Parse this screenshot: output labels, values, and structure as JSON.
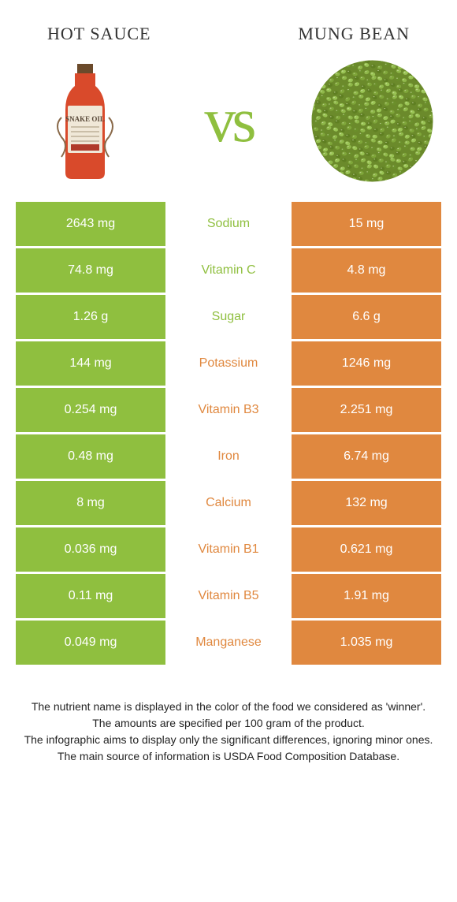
{
  "header": {
    "left_title": "Hot sauce",
    "right_title": "Mung bean"
  },
  "vs_label": "vs",
  "colors": {
    "green": "#8fbf3f",
    "orange": "#e0883f",
    "white": "#ffffff",
    "nutrient_green_text": "#8fbf3f",
    "nutrient_orange_text": "#e0883f"
  },
  "rows": [
    {
      "left_val": "2643 mg",
      "name": "Sodium",
      "right_val": "15 mg",
      "winner": "left"
    },
    {
      "left_val": "74.8 mg",
      "name": "Vitamin C",
      "right_val": "4.8 mg",
      "winner": "left"
    },
    {
      "left_val": "1.26 g",
      "name": "Sugar",
      "right_val": "6.6 g",
      "winner": "left"
    },
    {
      "left_val": "144 mg",
      "name": "Potassium",
      "right_val": "1246 mg",
      "winner": "right"
    },
    {
      "left_val": "0.254 mg",
      "name": "Vitamin B3",
      "right_val": "2.251 mg",
      "winner": "right"
    },
    {
      "left_val": "0.48 mg",
      "name": "Iron",
      "right_val": "6.74 mg",
      "winner": "right"
    },
    {
      "left_val": "8 mg",
      "name": "Calcium",
      "right_val": "132 mg",
      "winner": "right"
    },
    {
      "left_val": "0.036 mg",
      "name": "Vitamin B1",
      "right_val": "0.621 mg",
      "winner": "right"
    },
    {
      "left_val": "0.11 mg",
      "name": "Vitamin B5",
      "right_val": "1.91 mg",
      "winner": "right"
    },
    {
      "left_val": "0.049 mg",
      "name": "Manganese",
      "right_val": "1.035 mg",
      "winner": "right"
    }
  ],
  "footer": {
    "line1": "The nutrient name is displayed in the color of the food we considered as 'winner'.",
    "line2": "The amounts are specified per 100 gram of the product.",
    "line3": "The infographic aims to display only the significant differences, ignoring minor ones.",
    "line4": "The main source of information is USDA Food Composition Database."
  }
}
